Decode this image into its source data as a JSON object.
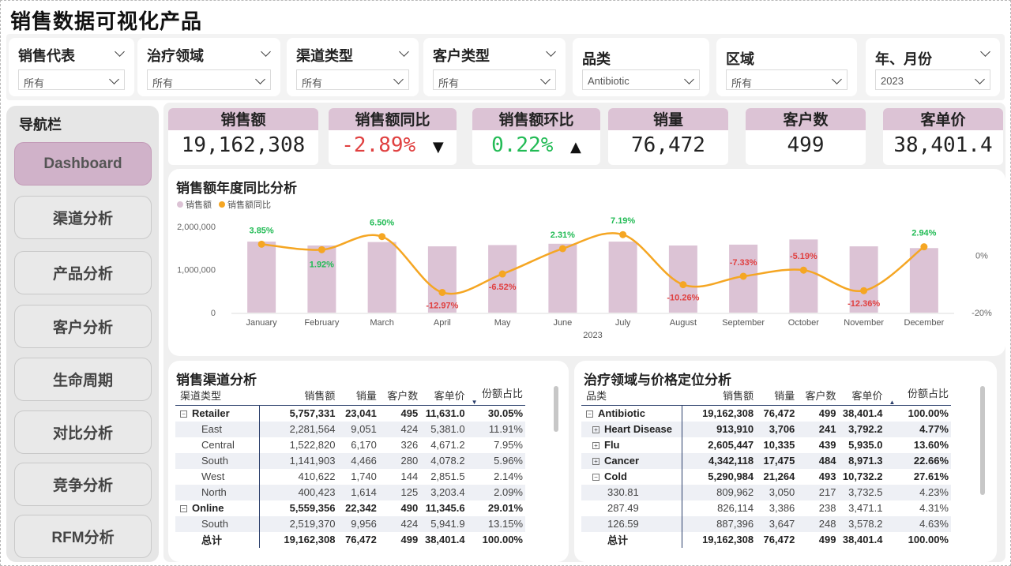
{
  "title": "销售数据可视化产品",
  "filters": [
    {
      "label": "销售代表",
      "value": "所有"
    },
    {
      "label": "治疗领域",
      "value": "所有"
    },
    {
      "label": "渠道类型",
      "value": "所有"
    },
    {
      "label": "客户类型",
      "value": "所有"
    },
    {
      "label": "品类",
      "value": "Antibiotic"
    },
    {
      "label": "区域",
      "value": "所有"
    },
    {
      "label": "年、月份",
      "value": "2023"
    }
  ],
  "nav": {
    "header": "导航栏",
    "items": [
      "Dashboard",
      "渠道分析",
      "产品分析",
      "客户分析",
      "生命周期",
      "对比分析",
      "竞争分析",
      "RFM分析"
    ]
  },
  "kpis": [
    {
      "label": "销售额",
      "value": "19,162,308"
    },
    {
      "label": "销售额同比",
      "value": "-2.89%",
      "arrow": "▼"
    },
    {
      "label": "销售额环比",
      "value": "0.22%",
      "arrow": "▲"
    },
    {
      "label": "销量",
      "value": "76,472"
    },
    {
      "label": "客户数",
      "value": "499"
    },
    {
      "label": "客单价",
      "value": "38,401.4"
    }
  ],
  "chart_data": {
    "type": "bar",
    "title": "销售额年度同比分析",
    "xlabel": "2023",
    "ylabel": "",
    "categories": [
      "January",
      "February",
      "March",
      "April",
      "May",
      "June",
      "July",
      "August",
      "September",
      "October",
      "November",
      "December"
    ],
    "series": [
      {
        "name": "销售额",
        "type": "bar",
        "axis": "left",
        "color": "#dcc3d5",
        "values": [
          1650000,
          1560000,
          1640000,
          1540000,
          1570000,
          1600000,
          1650000,
          1560000,
          1580000,
          1700000,
          1540000,
          1500000
        ]
      },
      {
        "name": "销售额同比",
        "type": "line",
        "axis": "right",
        "color": "#f5a623",
        "values": [
          3.85,
          1.92,
          6.5,
          -12.97,
          -6.52,
          2.31,
          7.19,
          -10.26,
          -7.33,
          -5.19,
          -12.36,
          2.94
        ],
        "labels": [
          "3.85%",
          "1.92%",
          "6.50%",
          "-12.97%",
          "-6.52%",
          "2.31%",
          "7.19%",
          "-10.26%",
          "-7.33%",
          "-5.19%",
          "-12.36%",
          "2.94%"
        ]
      }
    ],
    "y_left": {
      "range": [
        0,
        2000000
      ],
      "ticks": [
        "0",
        "1,000,000",
        "2,000,000"
      ]
    },
    "y_right": {
      "range": [
        -20,
        10
      ],
      "ticks": [
        "-20%",
        "0%"
      ]
    },
    "legend": "top-left",
    "grid": false
  },
  "channel_table": {
    "title": "销售渠道分析",
    "columns": [
      "渠道类型",
      "销售额",
      "销量",
      "客户数",
      "客单价",
      "份额占比"
    ],
    "rows": [
      {
        "kind": "group",
        "expander": "−",
        "cells": [
          "Retailer",
          "5,757,331",
          "23,041",
          "495",
          "11,631.0",
          "30.05%"
        ]
      },
      {
        "kind": "sub",
        "cells": [
          "East",
          "2,281,564",
          "9,051",
          "424",
          "5,381.0",
          "11.91%"
        ]
      },
      {
        "kind": "sub",
        "cells": [
          "Central",
          "1,522,820",
          "6,170",
          "326",
          "4,671.2",
          "7.95%"
        ]
      },
      {
        "kind": "sub",
        "cells": [
          "South",
          "1,141,903",
          "4,466",
          "280",
          "4,078.2",
          "5.96%"
        ]
      },
      {
        "kind": "sub",
        "cells": [
          "West",
          "410,622",
          "1,740",
          "144",
          "2,851.5",
          "2.14%"
        ]
      },
      {
        "kind": "sub",
        "cells": [
          "North",
          "400,423",
          "1,614",
          "125",
          "3,203.4",
          "2.09%"
        ]
      },
      {
        "kind": "group",
        "expander": "−",
        "cells": [
          "Online",
          "5,559,356",
          "22,342",
          "490",
          "11,345.6",
          "29.01%"
        ]
      },
      {
        "kind": "sub",
        "cells": [
          "South",
          "2,519,370",
          "9,956",
          "424",
          "5,941.9",
          "13.15%"
        ]
      }
    ],
    "total": [
      "总计",
      "19,162,308",
      "76,472",
      "499",
      "38,401.4",
      "100.00%"
    ]
  },
  "therapy_table": {
    "title": "治疗领域与价格定位分析",
    "columns": [
      "品类",
      "销售额",
      "销量",
      "客户数",
      "客单价",
      "份额占比"
    ],
    "rows": [
      {
        "kind": "group",
        "expander": "−",
        "cells": [
          "Antibiotic",
          "19,162,308",
          "76,472",
          "499",
          "38,401.4",
          "100.00%"
        ]
      },
      {
        "kind": "group2",
        "expander": "+",
        "cells": [
          "Heart Disease",
          "913,910",
          "3,706",
          "241",
          "3,792.2",
          "4.77%"
        ]
      },
      {
        "kind": "group2",
        "expander": "+",
        "cells": [
          "Flu",
          "2,605,447",
          "10,335",
          "439",
          "5,935.0",
          "13.60%"
        ]
      },
      {
        "kind": "group2",
        "expander": "+",
        "cells": [
          "Cancer",
          "4,342,118",
          "17,475",
          "484",
          "8,971.3",
          "22.66%"
        ]
      },
      {
        "kind": "group2",
        "expander": "−",
        "cells": [
          "Cold",
          "5,290,984",
          "21,264",
          "493",
          "10,732.2",
          "27.61%"
        ]
      },
      {
        "kind": "sub",
        "cells": [
          "330.81",
          "809,962",
          "3,050",
          "217",
          "3,732.5",
          "4.23%"
        ]
      },
      {
        "kind": "sub",
        "cells": [
          "287.49",
          "826,114",
          "3,386",
          "238",
          "3,471.1",
          "4.31%"
        ]
      },
      {
        "kind": "sub",
        "cells": [
          "126.59",
          "887,396",
          "3,647",
          "248",
          "3,578.2",
          "4.63%"
        ]
      }
    ],
    "total": [
      "总计",
      "19,162,308",
      "76,472",
      "499",
      "38,401.4",
      "100.00%"
    ]
  },
  "colors": {
    "accent": "#dcc3d5",
    "line": "#f5a623",
    "negative": "#e04040",
    "positive": "#22bb55",
    "table_rule": "#2b3f6b"
  }
}
